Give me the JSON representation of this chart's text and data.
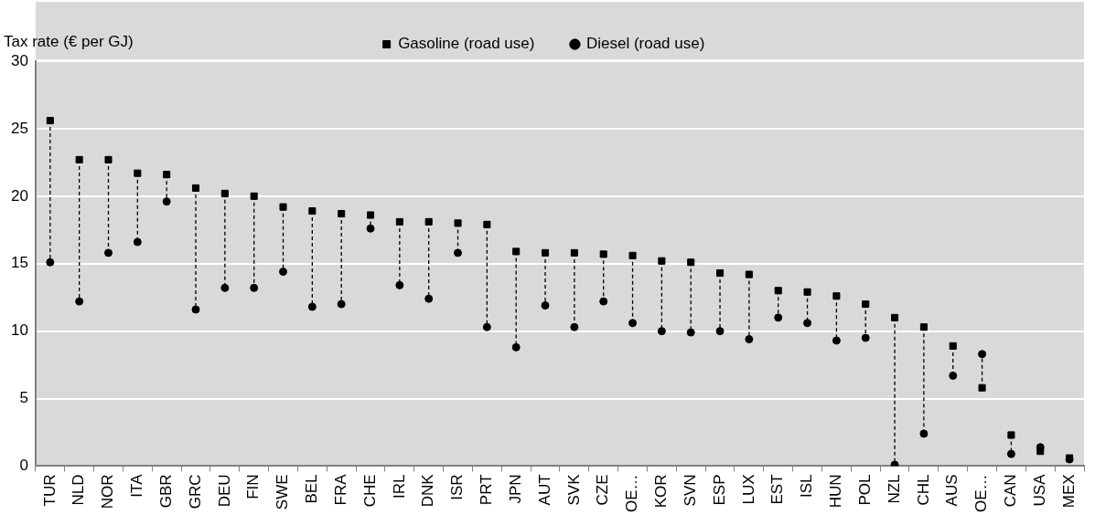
{
  "chart_data": {
    "type": "scatter",
    "ylabel": "Tax rate (€ per GJ)",
    "categories": [
      "TUR",
      "NLD",
      "NOR",
      "ITA",
      "GBR",
      "GRC",
      "DEU",
      "FIN",
      "SWE",
      "BEL",
      "FRA",
      "CHE",
      "IRL",
      "DNK",
      "ISR",
      "PRT",
      "JPN",
      "AUT",
      "SVK",
      "CZE",
      "OE…",
      "KOR",
      "SVN",
      "ESP",
      "LUX",
      "EST",
      "ISL",
      "HUN",
      "POL",
      "NZL",
      "CHL",
      "AUS",
      "OE…",
      "CAN",
      "USA",
      "MEX"
    ],
    "series": [
      {
        "name": "Gasoline (road use)",
        "color": "#000000",
        "marker": "square",
        "values": [
          25.6,
          22.7,
          22.7,
          21.7,
          21.6,
          20.6,
          20.2,
          20.0,
          19.2,
          18.9,
          18.7,
          18.6,
          18.1,
          18.1,
          18.0,
          17.9,
          15.9,
          15.8,
          15.8,
          15.7,
          15.6,
          15.2,
          15.1,
          14.3,
          14.2,
          13.0,
          12.9,
          12.6,
          12.0,
          11.0,
          10.3,
          8.9,
          5.8,
          2.3,
          1.1,
          0.6
        ]
      },
      {
        "name": "Diesel (road use)",
        "color": "#000000",
        "marker": "circle",
        "values": [
          15.1,
          12.2,
          15.8,
          16.6,
          19.6,
          11.6,
          13.2,
          13.2,
          14.4,
          11.8,
          12.0,
          17.6,
          13.4,
          12.4,
          15.8,
          10.3,
          8.8,
          11.9,
          10.3,
          12.2,
          10.6,
          10.0,
          9.9,
          10.0,
          9.4,
          11.0,
          10.6,
          9.3,
          9.5,
          0.1,
          2.4,
          6.7,
          8.3,
          0.9,
          1.4,
          0.5
        ]
      }
    ],
    "ylim": [
      0,
      30
    ],
    "yticks": [
      0,
      5,
      10,
      15,
      20,
      25,
      30
    ],
    "grid": "y",
    "legend": "top"
  }
}
